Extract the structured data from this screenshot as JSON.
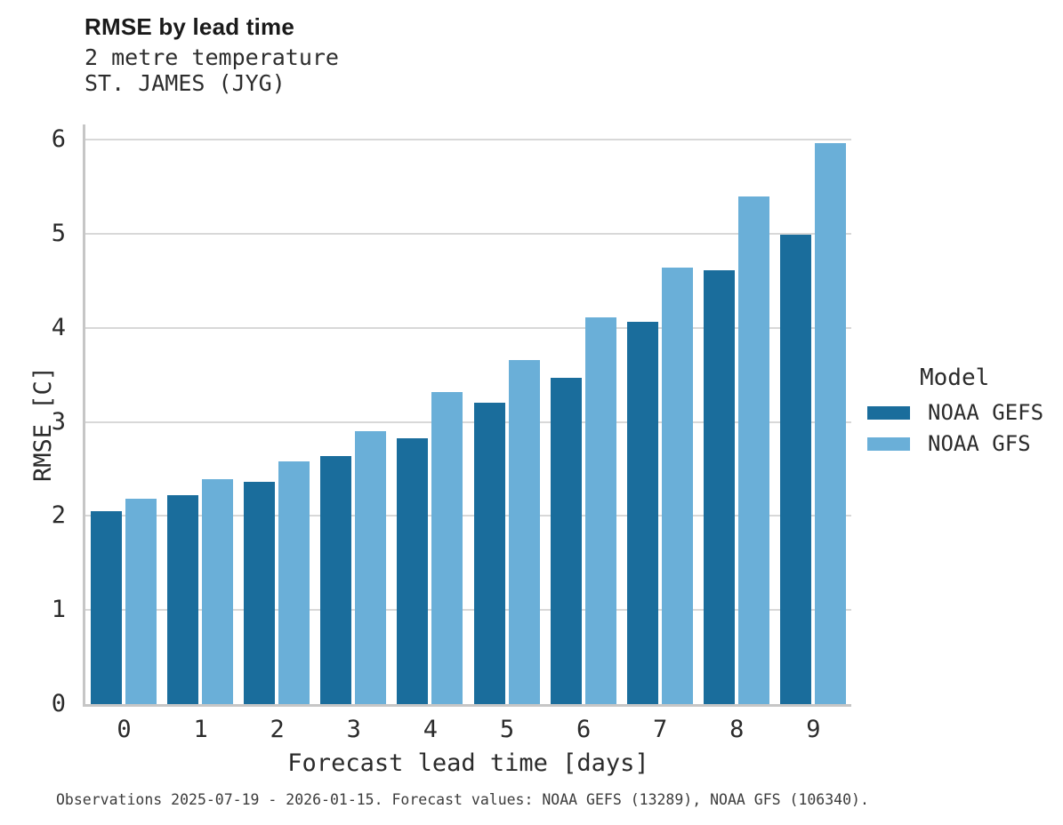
{
  "figure": {
    "caption": "Observations 2025-07-19 - 2026-01-15. Forecast values: NOAA GEFS (13289), NOAA GFS (106340)."
  },
  "chart_data": {
    "type": "bar",
    "title": "RMSE by lead time",
    "subtitle": [
      "2 metre temperature",
      "ST. JAMES (JYG)"
    ],
    "xlabel": "Forecast lead time [days]",
    "ylabel": "RMSE [C]",
    "categories": [
      "0",
      "1",
      "2",
      "3",
      "4",
      "5",
      "6",
      "7",
      "8",
      "9"
    ],
    "series": [
      {
        "name": "NOAA GEFS",
        "color": "#1a6d9c",
        "values": [
          2.05,
          2.22,
          2.36,
          2.64,
          2.83,
          3.2,
          3.47,
          4.06,
          4.61,
          4.99
        ]
      },
      {
        "name": "NOAA GFS",
        "color": "#6aafd8",
        "values": [
          2.18,
          2.39,
          2.58,
          2.9,
          3.32,
          3.66,
          4.11,
          4.64,
          5.4,
          5.96
        ]
      }
    ],
    "ylim": [
      0,
      6
    ],
    "yticks": [
      0,
      1,
      2,
      3,
      4,
      5,
      6
    ],
    "grid": "horizontal-major",
    "legend": {
      "title": "Model",
      "position": "right"
    },
    "colors": {
      "gridline": "#d8d8d8",
      "spine": "#c6c6c6"
    }
  }
}
